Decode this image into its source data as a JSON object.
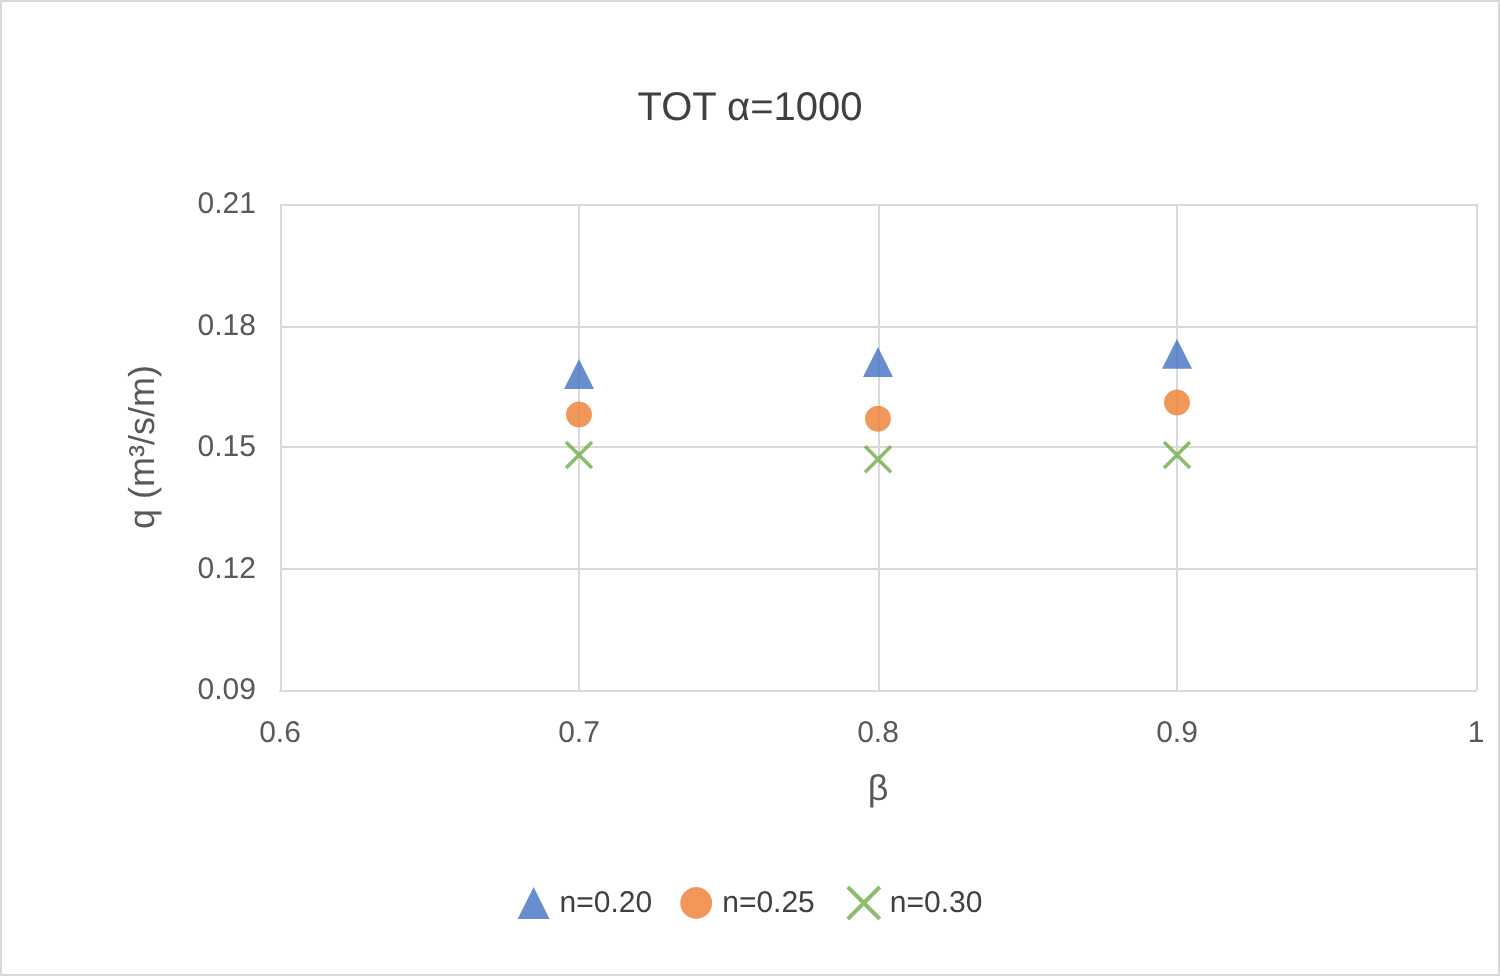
{
  "chart_data": {
    "type": "scatter",
    "title": "TOT α=1000",
    "xlabel": "β",
    "ylabel": "q (m³/s/m)",
    "x": [
      0.7,
      0.8,
      0.9
    ],
    "series": [
      {
        "name": "n=0.20",
        "color": "#4472c4",
        "marker": "triangle",
        "values": [
          0.168,
          0.171,
          0.173
        ]
      },
      {
        "name": "n=0.25",
        "color": "#ed7d31",
        "marker": "circle",
        "values": [
          0.158,
          0.157,
          0.161
        ]
      },
      {
        "name": "n=0.30",
        "color": "#70ad47",
        "marker": "cross",
        "values": [
          0.148,
          0.147,
          0.148
        ]
      }
    ],
    "xlim": [
      0.6,
      1
    ],
    "xticks": [
      0.6,
      0.7,
      0.8,
      0.9,
      1
    ],
    "ylim": [
      0.09,
      0.21
    ],
    "yticks": [
      0.09,
      0.12,
      0.15,
      0.18,
      0.21
    ],
    "grid": true,
    "legend": "bottom"
  }
}
